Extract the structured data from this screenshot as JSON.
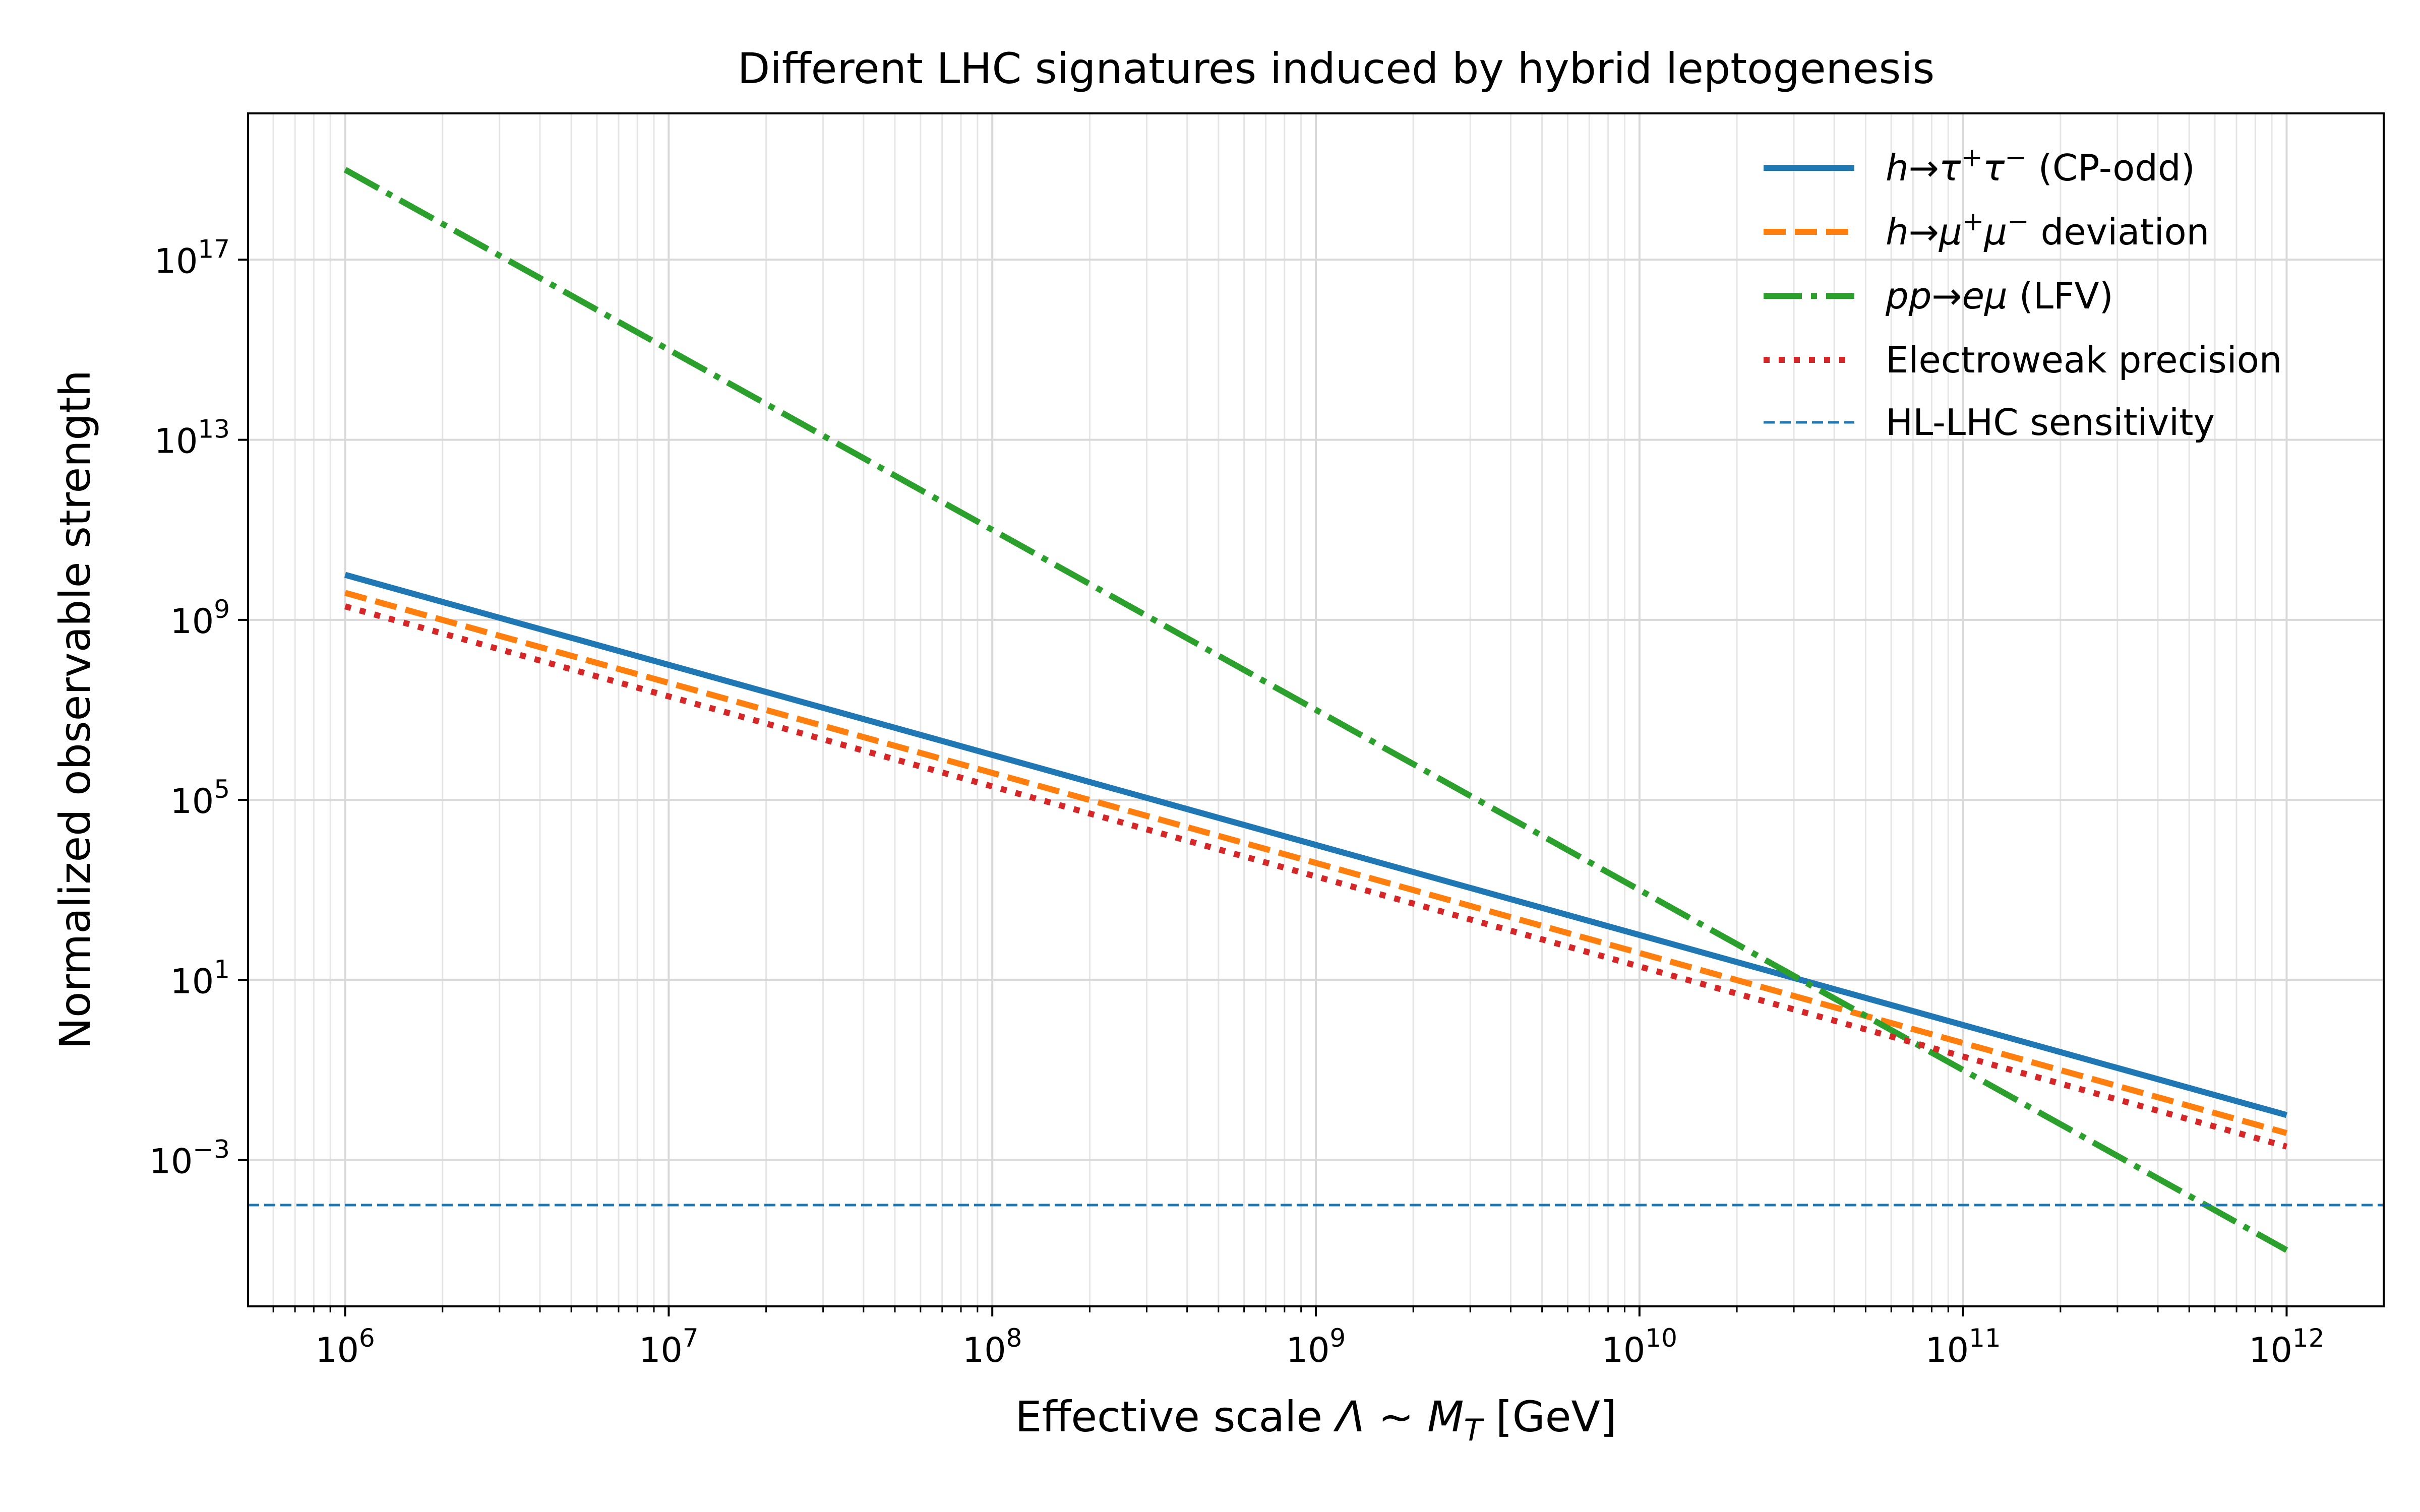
{
  "chart_data": {
    "type": "line",
    "title": "Different LHC signatures induced by hybrid leptogenesis",
    "xlabel": "Effective scale Λ ~ M_T [GeV]",
    "ylabel": "Normalized observable strength",
    "xscale": "log",
    "yscale": "log",
    "xlim_log10": [
      5.7,
      12.3
    ],
    "ylim_log10": [
      -6.25,
      20.25
    ],
    "x_ticks_log10": [
      6,
      7,
      8,
      9,
      10,
      11,
      12
    ],
    "x_tick_labels": [
      "10^6",
      "10^7",
      "10^8",
      "10^9",
      "10^10",
      "10^11",
      "10^12"
    ],
    "y_ticks_log10": [
      -3,
      1,
      5,
      9,
      13,
      17
    ],
    "y_tick_labels": [
      "10^-3",
      "10^1",
      "10^5",
      "10^9",
      "10^13",
      "10^17"
    ],
    "grid": "both (major and minor)",
    "legend_position": "upper-right",
    "series": [
      {
        "name": "h→τ⁺τ⁻ (CP-odd)",
        "style": "solid",
        "color": "#1f77b4",
        "x_log10": [
          6,
          12
        ],
        "y_log10": [
          10.0,
          -2.0
        ]
      },
      {
        "name": "h→μ⁺μ⁻ deviation",
        "style": "dashed",
        "color": "#ff7f0e",
        "x_log10": [
          6,
          12
        ],
        "y_log10": [
          9.6,
          -2.4
        ]
      },
      {
        "name": "pp→eμ (LFV)",
        "style": "dashdot",
        "color": "#2ca02c",
        "x_log10": [
          6,
          12
        ],
        "y_log10": [
          19.0,
          -5.0
        ]
      },
      {
        "name": "Electroweak precision",
        "style": "dotted",
        "color": "#d62728",
        "x_log10": [
          6,
          12
        ],
        "y_log10": [
          9.3,
          -2.7
        ]
      },
      {
        "name": "HL-LHC sensitivity",
        "style": "thin-dashed-horizontal",
        "color": "#1f77b4",
        "y_log10": -4.0
      }
    ]
  }
}
